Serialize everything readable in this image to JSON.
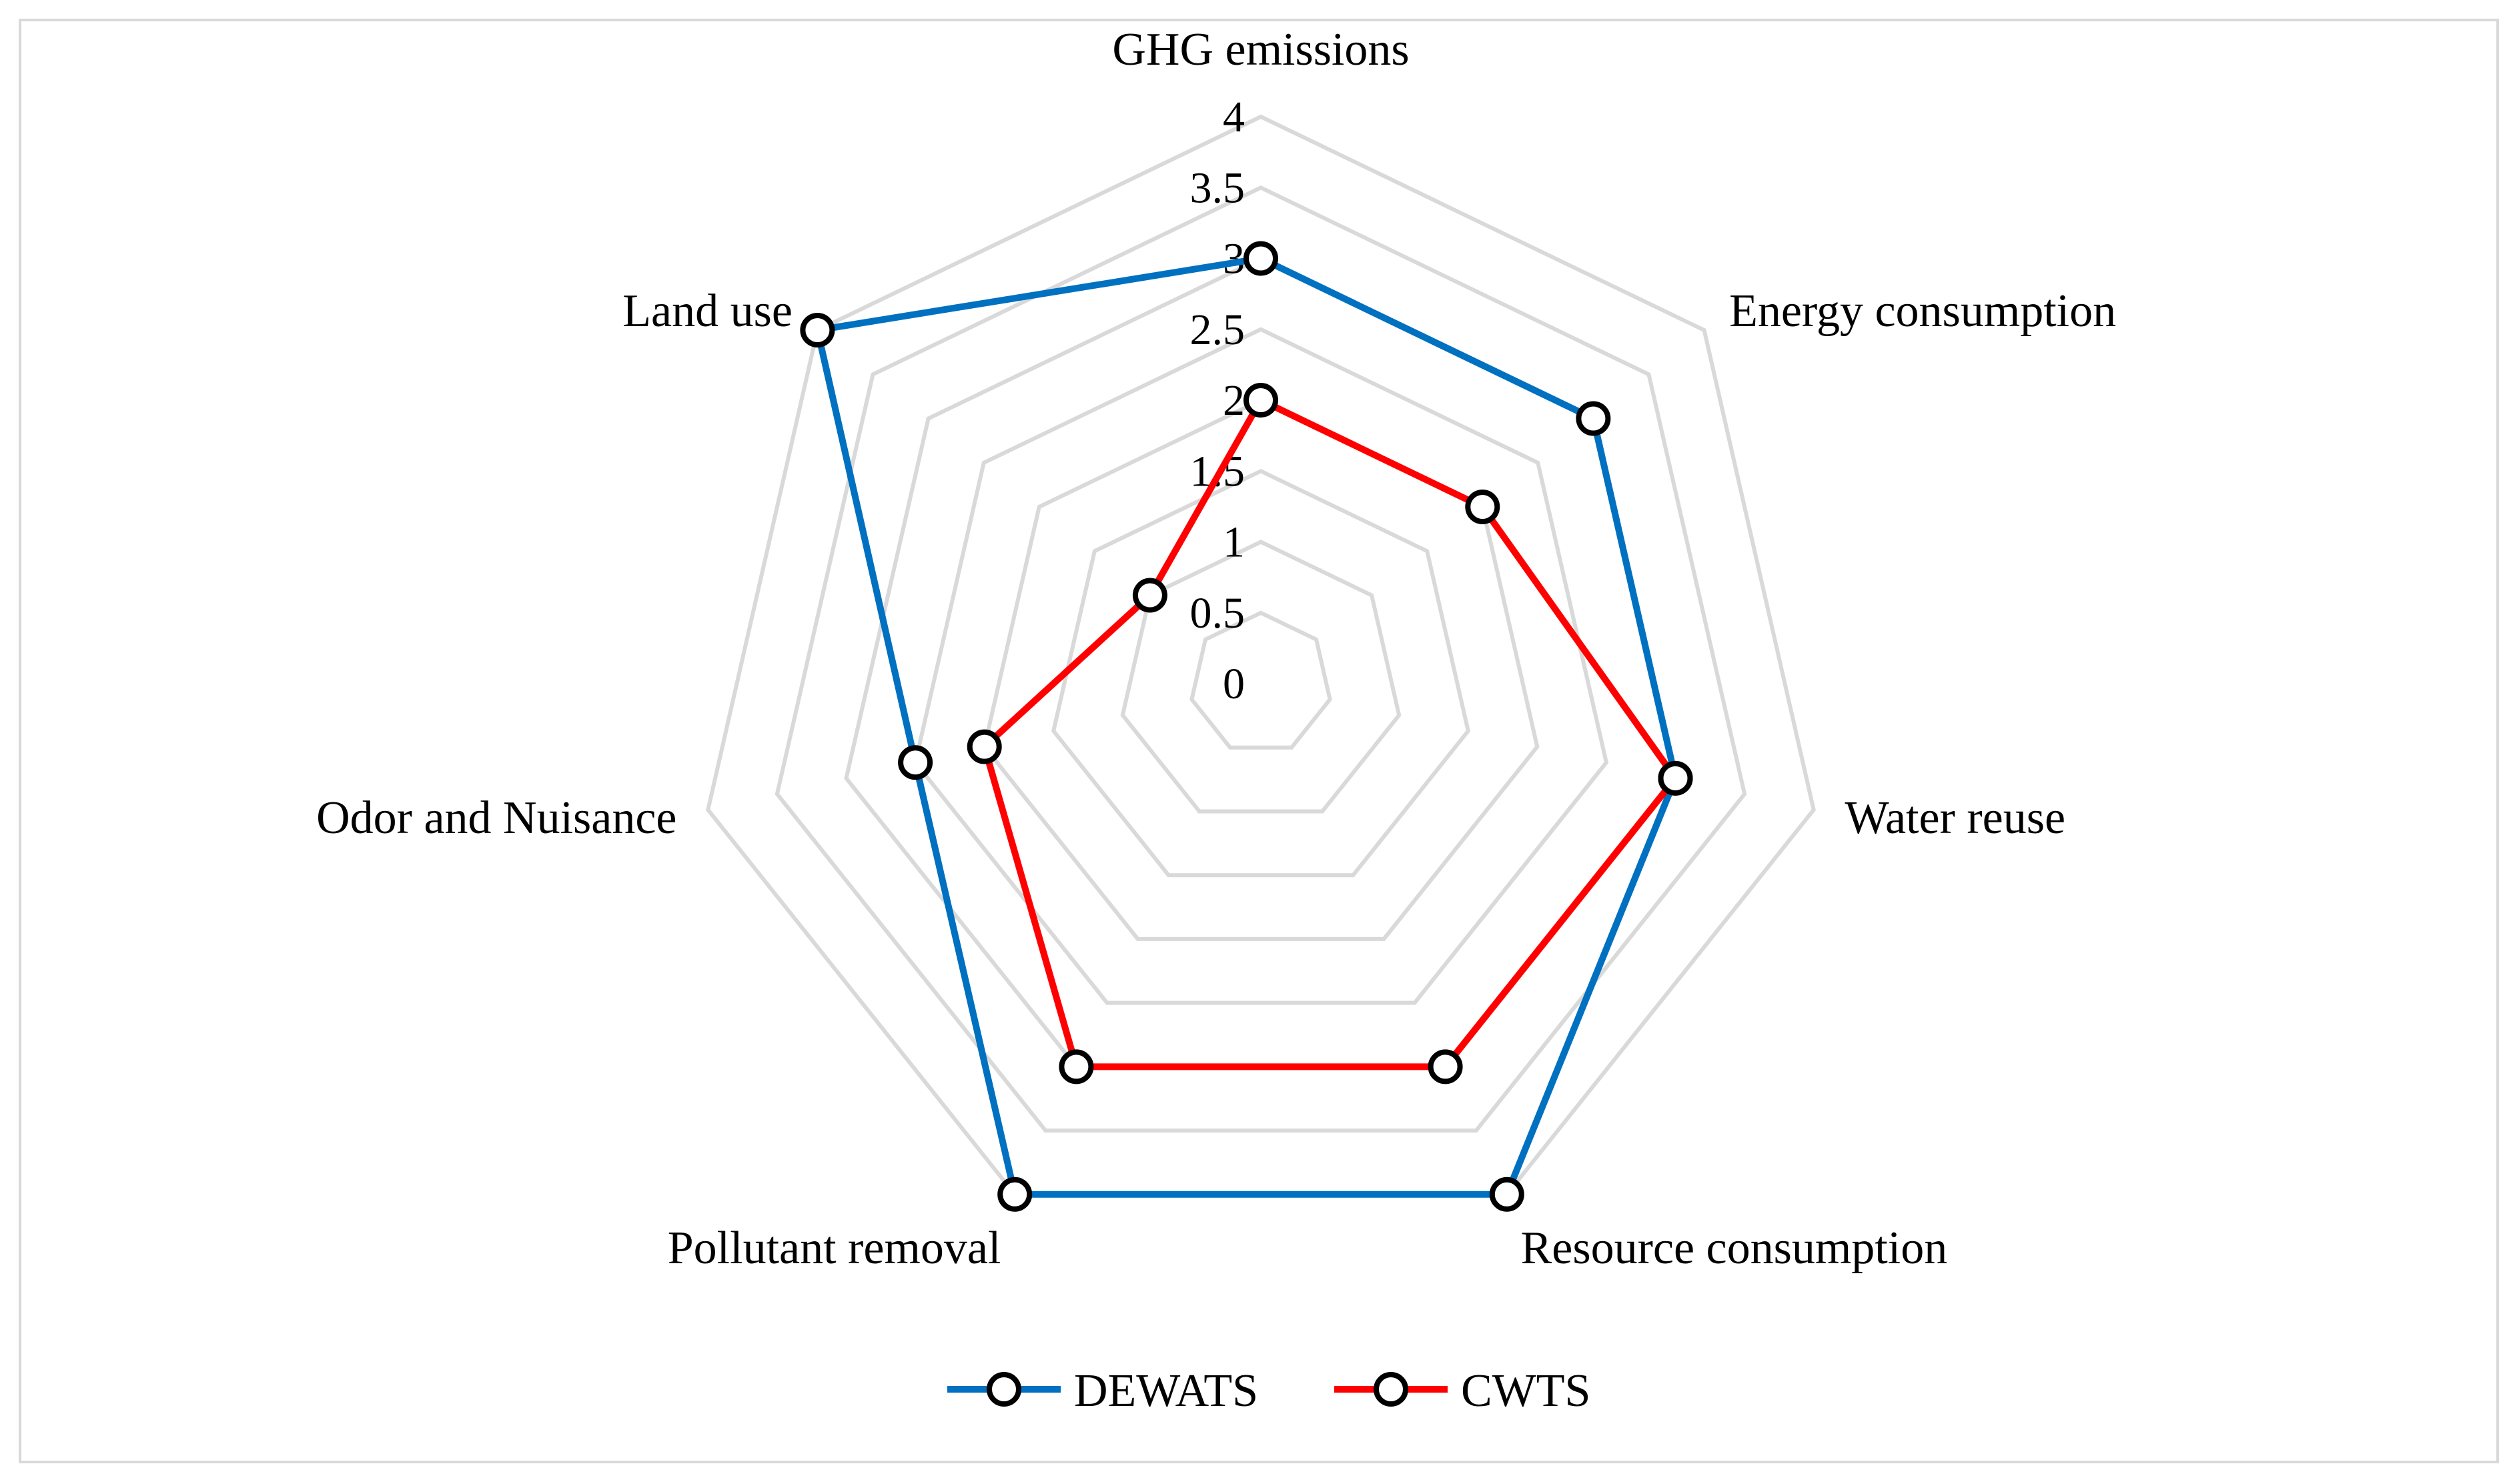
{
  "chart_data": {
    "type": "radar",
    "title": "",
    "categories": [
      "GHG emissions",
      "Energy consumption",
      "Water reuse",
      "Resource consumption",
      "Pollutant removal",
      "Odor and Nuisance",
      "Land use"
    ],
    "rlim": [
      0,
      4
    ],
    "ticks": [
      "0",
      "0.5",
      "1",
      "1.5",
      "2",
      "2.5",
      "3",
      "3.5",
      "4"
    ],
    "tick_values": [
      0,
      0.5,
      1,
      1.5,
      2,
      2.5,
      3,
      3.5,
      4
    ],
    "grid": true,
    "legend_position": "bottom",
    "series": [
      {
        "name": "DEWATS",
        "color": "#0070c0",
        "values": [
          3,
          3,
          3,
          4,
          4,
          2.5,
          4
        ]
      },
      {
        "name": "CWTS",
        "color": "#ff0000",
        "values": [
          2,
          2,
          3,
          3,
          3,
          2,
          1
        ]
      }
    ]
  }
}
